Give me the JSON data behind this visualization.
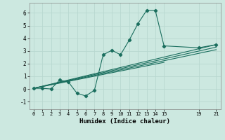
{
  "xlabel": "Humidex (Indice chaleur)",
  "bg_color": "#cce8e0",
  "grid_color": "#b8d8d0",
  "line_color": "#1a6e5e",
  "xlim": [
    -0.5,
    21.5
  ],
  "ylim": [
    -1.6,
    6.8
  ],
  "xticks": [
    0,
    1,
    2,
    3,
    4,
    5,
    6,
    7,
    8,
    9,
    10,
    11,
    12,
    13,
    14,
    15,
    19,
    21
  ],
  "yticks": [
    -1,
    0,
    1,
    2,
    3,
    4,
    5,
    6
  ],
  "data_x": [
    0,
    1,
    2,
    3,
    4,
    5,
    6,
    7,
    8,
    9,
    10,
    11,
    12,
    13,
    14,
    15,
    19,
    21
  ],
  "data_y": [
    0.05,
    0.05,
    0.0,
    0.7,
    0.55,
    -0.35,
    -0.55,
    -0.1,
    2.7,
    3.05,
    2.7,
    3.85,
    5.15,
    6.2,
    6.2,
    3.4,
    3.25,
    3.5
  ],
  "reg_lines": [
    {
      "x": [
        0,
        21
      ],
      "y": [
        0.05,
        3.5
      ]
    },
    {
      "x": [
        0,
        21
      ],
      "y": [
        0.05,
        3.3
      ]
    },
    {
      "x": [
        0,
        21
      ],
      "y": [
        0.05,
        3.1
      ]
    },
    {
      "x": [
        0,
        15
      ],
      "y": [
        0.05,
        2.1
      ]
    }
  ]
}
